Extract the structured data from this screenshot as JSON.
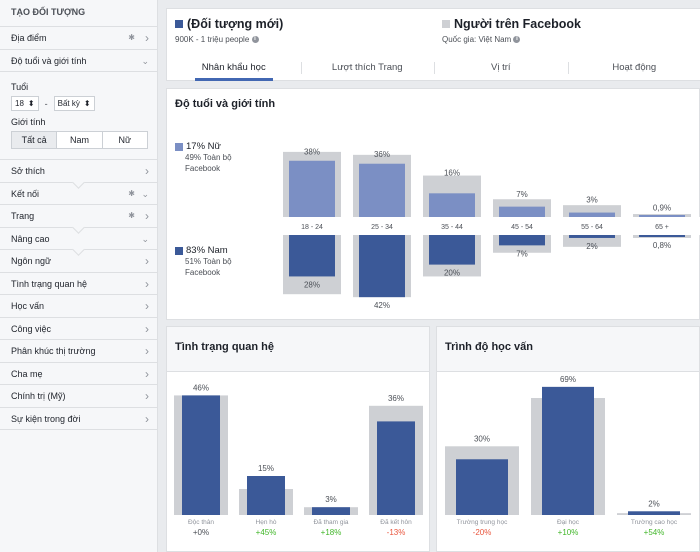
{
  "sidebar": {
    "title": "TẠO ĐỐI TƯỢNG",
    "location": "Địa điểm",
    "age_gender": "Độ tuổi và giới tính",
    "age_label": "Tuổi",
    "age_min": "18",
    "age_max": "Bất kỳ",
    "gender_label": "Giới tính",
    "gender_options": [
      "Tất cả",
      "Nam",
      "Nữ"
    ],
    "items": [
      "Sở thích",
      "Kết nối",
      "Trang",
      "Nâng cao",
      "Ngôn ngữ",
      "Tình trạng quan hệ",
      "Học vấn",
      "Công việc",
      "Phân khúc thị trường",
      "Cha mẹ",
      "Chính trị (Mỹ)",
      "Sự kiện trong đời"
    ]
  },
  "header": {
    "left_title": "(Đối tượng mới)",
    "left_sub": "900K - 1 triệu people",
    "right_title": "Người trên Facebook",
    "right_sub": "Quốc gia: Việt Nam",
    "tabs": [
      "Nhân khẩu học",
      "Lượt thích Trang",
      "Vị trí",
      "Hoạt động"
    ]
  },
  "colors": {
    "accent": "#4267b2",
    "dark_bar": "#3b5998",
    "light_bar": "#7b8fc4",
    "ref_bar": "#ced0d4",
    "positive": "#42b72a",
    "negative": "#e9573f"
  },
  "age_gender": {
    "title": "Độ tuổi và giới tính",
    "female_pct": "17% Nữ",
    "female_sub": "49% Toàn bộ Facebook",
    "male_pct": "83% Nam",
    "male_sub": "51% Toàn bộ Facebook"
  },
  "relationship": {
    "title": "Tình trạng quan hệ"
  },
  "education": {
    "title": "Trình độ học vấn"
  },
  "chart_data": [
    {
      "type": "bar",
      "title": "Độ tuổi và giới tính",
      "categories": [
        "18 - 24",
        "25 - 34",
        "35 - 44",
        "45 - 54",
        "55 - 64",
        "65 +"
      ],
      "series": [
        {
          "name": "Nữ",
          "labels": [
            "38%",
            "36%",
            "16%",
            "7%",
            "3%",
            "0,9%"
          ],
          "values": [
            38,
            36,
            16,
            7,
            3,
            0.9
          ],
          "reference": [
            44,
            42,
            28,
            12,
            8,
            2
          ]
        },
        {
          "name": "Nam",
          "labels": [
            "28%",
            "42%",
            "20%",
            "7%",
            "2%",
            "0,8%"
          ],
          "values": [
            28,
            42,
            20,
            7,
            2,
            0.8
          ],
          "reference": [
            40,
            42,
            28,
            12,
            8,
            2
          ]
        }
      ]
    },
    {
      "type": "bar",
      "title": "Tình trạng quan hệ",
      "categories": [
        "Độc thân",
        "Hẹn hò",
        "Đã tham gia",
        "Đã kết hôn"
      ],
      "labels": [
        "46%",
        "15%",
        "3%",
        "36%"
      ],
      "values": [
        46,
        15,
        3,
        36
      ],
      "reference": [
        46,
        10,
        3,
        42
      ],
      "changes": [
        "+0%",
        "+45%",
        "+18%",
        "-13%"
      ],
      "ylim": [
        0,
        50
      ]
    },
    {
      "type": "bar",
      "title": "Trình độ học vấn",
      "categories": [
        "Trường trung học",
        "Đại học",
        "Trường cao học"
      ],
      "labels": [
        "30%",
        "69%",
        "2%"
      ],
      "values": [
        30,
        69,
        2
      ],
      "reference": [
        37,
        63,
        1
      ],
      "changes": [
        "-20%",
        "+10%",
        "+54%"
      ],
      "ylim": [
        0,
        70
      ]
    }
  ]
}
